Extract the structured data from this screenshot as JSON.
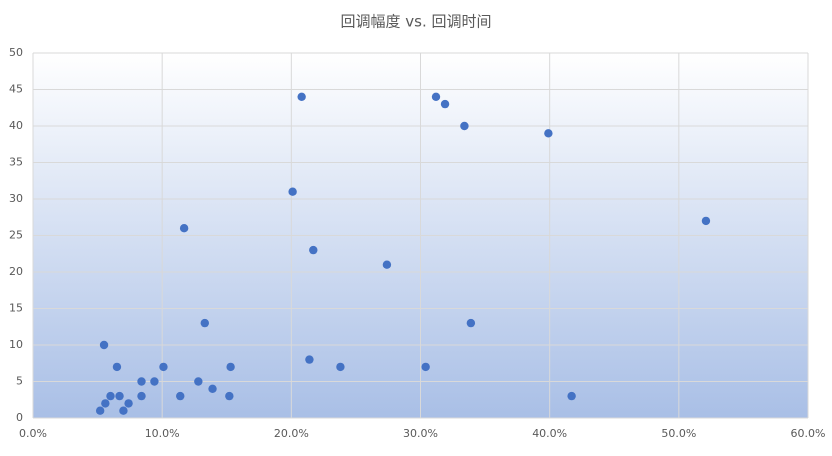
{
  "chart_data": {
    "type": "scatter",
    "title": "回调幅度 vs. 回调时间",
    "x": [
      5.2,
      5.6,
      5.5,
      6.0,
      6.5,
      6.7,
      7.0,
      7.4,
      8.4,
      8.4,
      9.4,
      10.1,
      11.4,
      11.7,
      12.8,
      13.3,
      13.9,
      15.3,
      15.2,
      20.1,
      20.8,
      21.4,
      21.7,
      23.8,
      27.4,
      30.4,
      31.2,
      31.9,
      33.4,
      33.9,
      39.9,
      41.7,
      52.1
    ],
    "values": [
      1,
      2,
      10,
      3,
      7,
      3,
      1,
      2,
      5,
      3,
      5,
      7,
      3,
      26,
      5,
      13,
      4,
      7,
      3,
      31,
      44,
      8,
      23,
      7,
      21,
      7,
      44,
      43,
      40,
      13,
      39,
      3,
      27
    ],
    "color": "#4472c4",
    "xlim": [
      0,
      60
    ],
    "xticks": [
      {
        "value": 0,
        "label": "0.0%"
      },
      {
        "value": 10,
        "label": "10.0%"
      },
      {
        "value": 20,
        "label": "20.0%"
      },
      {
        "value": 30,
        "label": "30.0%"
      },
      {
        "value": 40,
        "label": "40.0%"
      },
      {
        "value": 50,
        "label": "50.0%"
      },
      {
        "value": 60,
        "label": "60.0%"
      }
    ],
    "ylim": [
      0,
      50
    ],
    "yticks": [
      0,
      5,
      10,
      15,
      20,
      25,
      30,
      35,
      40,
      45,
      50
    ],
    "grid": true
  }
}
